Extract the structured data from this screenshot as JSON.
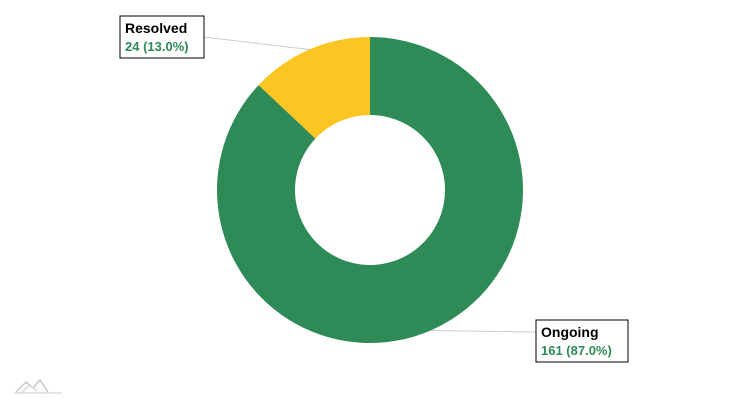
{
  "chart_data": {
    "type": "pie",
    "variant": "donut",
    "labels": [
      "Ongoing",
      "Resolved"
    ],
    "values": [
      161,
      24
    ],
    "percentages": [
      "87.0%",
      "13.0%"
    ],
    "value_labels": [
      "161 (87.0%)",
      "24 (13.0%)"
    ],
    "colors": [
      "#2e8b57",
      "#fcc522"
    ],
    "start_angle": "12 o'clock",
    "direction": "clockwise",
    "legend": "none",
    "label_style": "callout boxes with leader lines"
  },
  "watermark": {
    "icon": "amcharts-logo-icon",
    "color": "#c8c8c8"
  }
}
